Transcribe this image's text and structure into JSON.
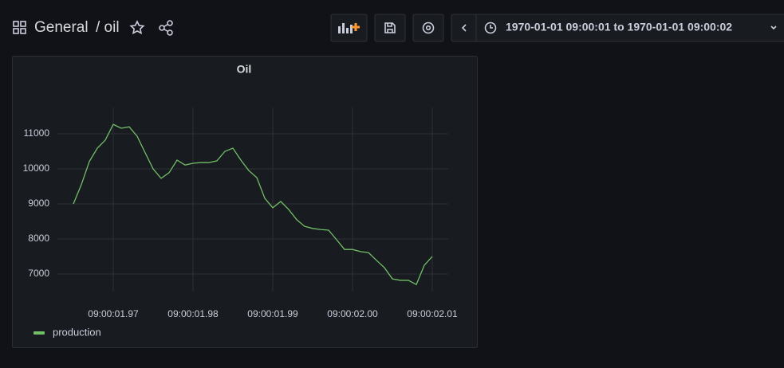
{
  "header": {
    "folder": "General",
    "dashboard": "/ oil",
    "time_range": "1970-01-01 09:00:01 to 1970-01-01 09:00:02"
  },
  "chart_data": {
    "type": "line",
    "title": "Oil",
    "x": [
      1.965,
      1.966,
      1.967,
      1.968,
      1.969,
      1.97,
      1.971,
      1.972,
      1.973,
      1.974,
      1.975,
      1.976,
      1.977,
      1.978,
      1.979,
      1.98,
      1.981,
      1.982,
      1.983,
      1.984,
      1.985,
      1.986,
      1.987,
      1.988,
      1.989,
      1.99,
      1.991,
      1.992,
      1.993,
      1.994,
      1.995,
      1.996,
      1.997,
      1.998,
      1.999,
      2.0,
      2.001,
      2.002,
      2.003,
      2.004,
      2.005,
      2.006,
      2.007,
      2.008,
      2.009,
      2.01
    ],
    "series": [
      {
        "name": "production",
        "color": "#73bf69",
        "values": [
          9000,
          9550,
          10210,
          10590,
          10820,
          11270,
          11160,
          11200,
          10930,
          10460,
          10000,
          9730,
          9890,
          10250,
          10110,
          10160,
          10180,
          10180,
          10230,
          10500,
          10590,
          10250,
          9950,
          9750,
          9160,
          8890,
          9070,
          8840,
          8550,
          8360,
          8300,
          8270,
          8250,
          7980,
          7700,
          7700,
          7640,
          7610,
          7390,
          7180,
          6860,
          6820,
          6820,
          6700,
          7250,
          7500
        ]
      }
    ],
    "xlim": [
      1.963,
      2.012
    ],
    "xticks": [
      {
        "value": 1.97,
        "label": "09:00:01.97"
      },
      {
        "value": 1.98,
        "label": "09:00:01.98"
      },
      {
        "value": 1.99,
        "label": "09:00:01.99"
      },
      {
        "value": 2.0,
        "label": "09:00:02.00"
      },
      {
        "value": 2.01,
        "label": "09:00:02.01"
      }
    ],
    "ylim": [
      6500,
      11750
    ],
    "yticks": [
      7000,
      8000,
      9000,
      10000,
      11000
    ],
    "grid": true
  }
}
